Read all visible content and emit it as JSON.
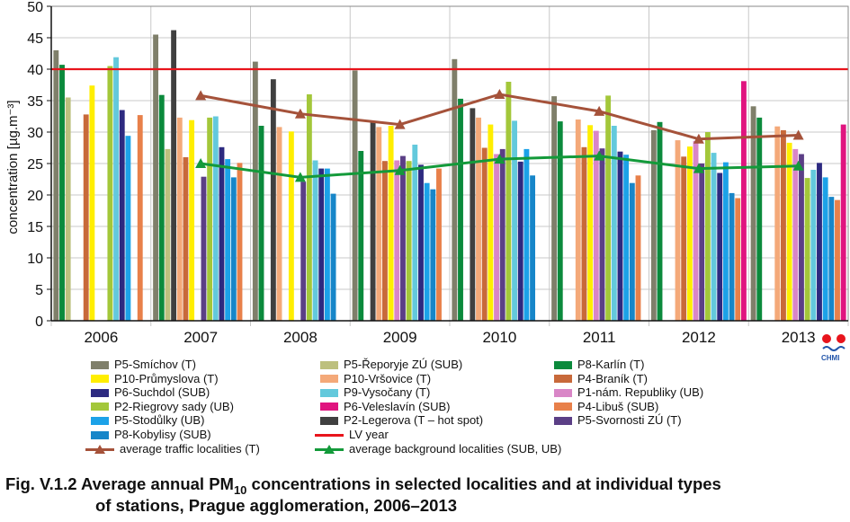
{
  "chart_data": {
    "type": "bar",
    "ylabel": "concentration [µg.m⁻³]",
    "ylim": [
      0,
      50
    ],
    "yticks": [
      0,
      5,
      10,
      15,
      20,
      25,
      30,
      35,
      40,
      45,
      50
    ],
    "categories": [
      "2006",
      "2007",
      "2008",
      "2009",
      "2010",
      "2011",
      "2012",
      "2013"
    ],
    "series": [
      {
        "name": "P5-Smíchov (T)",
        "color": "#7f7f6a",
        "values": [
          43,
          45.5,
          41.2,
          39.8,
          41.6,
          35.7,
          30.3,
          34.1
        ]
      },
      {
        "name": "P8-Karlín (T)",
        "color": "#0b8a3c",
        "values": [
          40.7,
          35.9,
          31,
          27,
          35.3,
          31.7,
          31.6,
          32.3
        ]
      },
      {
        "name": "P5-Řeporyje ZÚ (SUB)",
        "color": "#bdc07e",
        "values": [
          35.5,
          27.3,
          null,
          null,
          null,
          null,
          null,
          null
        ]
      },
      {
        "name": "P2-Legerova (T – hot spot)",
        "color": "#404040",
        "values": [
          null,
          46.2,
          38.4,
          31.7,
          33.8,
          null,
          null,
          null
        ]
      },
      {
        "name": "P10-Vršovice (T)",
        "color": "#f4a979",
        "values": [
          null,
          32.3,
          30.8,
          30.8,
          32.3,
          32,
          28.7,
          30.9
        ]
      },
      {
        "name": "P4-Braník (T)",
        "color": "#c8693a",
        "values": [
          32.8,
          26,
          null,
          25.4,
          27.5,
          27.6,
          26.1,
          30.3
        ]
      },
      {
        "name": "P10-Průmyslova (T)",
        "color": "#ffee00",
        "values": [
          37.4,
          31.9,
          30.1,
          31,
          31.2,
          31.1,
          27.7,
          28.3
        ]
      },
      {
        "name": "P1-nám. Republiky (UB)",
        "color": "#d986c7",
        "values": [
          null,
          null,
          null,
          25.5,
          26.5,
          30.2,
          28.6,
          27.3
        ]
      },
      {
        "name": "P5-Svornosti ZÚ (T)",
        "color": "#5b3f86",
        "values": [
          null,
          22.9,
          22.1,
          26.2,
          27.3,
          27.4,
          25,
          26.5
        ]
      },
      {
        "name": "P2-Riegrovy sady (UB)",
        "color": "#a3c73a",
        "values": [
          40.5,
          32.3,
          36,
          25.4,
          38,
          35.8,
          30,
          22.7
        ]
      },
      {
        "name": "P9-Vysočany (T)",
        "color": "#63c9dc",
        "values": [
          41.9,
          32.5,
          25.5,
          28,
          31.8,
          31,
          26.7,
          24
        ]
      },
      {
        "name": "P6-Suchdol (SUB)",
        "color": "#2d2a80",
        "values": [
          33.5,
          27.6,
          24.2,
          24.8,
          25.3,
          26.9,
          23.5,
          25.1
        ]
      },
      {
        "name": "P5-Stodůlky (UB)",
        "color": "#1ca2e8",
        "values": [
          29.4,
          25.7,
          24.2,
          21.9,
          27.3,
          26.4,
          25.2,
          22.8
        ]
      },
      {
        "name": "P8-Kobylisy (SUB)",
        "color": "#1786c9",
        "values": [
          null,
          22.8,
          20.2,
          20.9,
          23.1,
          21.9,
          20.3,
          19.7
        ]
      },
      {
        "name": "P4-Libuš (SUB)",
        "color": "#e8804a",
        "values": [
          32.7,
          25.1,
          null,
          24.2,
          null,
          23.1,
          19.5,
          19.2
        ]
      },
      {
        "name": "P6-Veleslavín (SUB)",
        "color": "#e0147f",
        "values": [
          null,
          null,
          null,
          null,
          null,
          null,
          38.1,
          31.2
        ]
      }
    ],
    "lines": [
      {
        "name": "LV year",
        "color": "#e8141c",
        "value": 40
      },
      {
        "name": "average traffic localities  (T)",
        "color": "#a5523a",
        "marker": "triangle",
        "values": [
          null,
          35.8,
          32.9,
          31.2,
          36,
          33.3,
          28.9,
          29.5
        ]
      },
      {
        "name": "average background localities  (SUB, UB)",
        "color": "#139a3a",
        "marker": "triangle",
        "values": [
          null,
          25,
          22.8,
          23.9,
          25.7,
          26.2,
          24.2,
          24.6
        ]
      }
    ],
    "grid": true,
    "legend_position": "bottom"
  },
  "legend": [
    {
      "label": "P5-Smíchov (T)",
      "color": "#7f7f6a",
      "kind": "box"
    },
    {
      "label": "P5-Řeporyje ZÚ (SUB)",
      "color": "#bdc07e",
      "kind": "box"
    },
    {
      "label": "P8-Karlín (T)",
      "color": "#0b8a3c",
      "kind": "box"
    },
    {
      "label": "P10-Průmyslova (T)",
      "color": "#ffee00",
      "kind": "box"
    },
    {
      "label": "P10-Vršovice (T)",
      "color": "#f4a979",
      "kind": "box"
    },
    {
      "label": "P4-Braník (T)",
      "color": "#c8693a",
      "kind": "box"
    },
    {
      "label": "P6-Suchdol (SUB)",
      "color": "#2d2a80",
      "kind": "box"
    },
    {
      "label": "P9-Vysočany (T)",
      "color": "#63c9dc",
      "kind": "box"
    },
    {
      "label": "P1-nám. Republiky (UB)",
      "color": "#d986c7",
      "kind": "box"
    },
    {
      "label": "P2-Riegrovy sady (UB)",
      "color": "#a3c73a",
      "kind": "box"
    },
    {
      "label": "P6-Veleslavín (SUB)",
      "color": "#e0147f",
      "kind": "box"
    },
    {
      "label": "P4-Libuš (SUB)",
      "color": "#e8804a",
      "kind": "box"
    },
    {
      "label": "P5-Stodůlky (UB)",
      "color": "#1ca2e8",
      "kind": "box"
    },
    {
      "label": "P2-Legerova (T – hot spot)",
      "color": "#404040",
      "kind": "box"
    },
    {
      "label": "P5-Svornosti ZÚ (T)",
      "color": "#5b3f86",
      "kind": "box"
    },
    {
      "label": "P8-Kobylisy (SUB)",
      "color": "#1786c9",
      "kind": "box"
    },
    {
      "label": "LV year",
      "color": "#e8141c",
      "kind": "line"
    },
    {
      "label": "average traffic localities  (T)",
      "color": "#a5523a",
      "kind": "tri"
    },
    {
      "label": "average background localities  (SUB, UB)",
      "color": "#139a3a",
      "kind": "tri"
    }
  ],
  "caption": {
    "line1_prefix": "Fig. V.1.2  Average annual PM",
    "line1_sub": "10",
    "line1_suffix": " concentrations in selected localities and at individual types",
    "line2": "of stations, Prague agglomeration, 2006–2013"
  },
  "logo": {
    "text": "CHMI"
  }
}
